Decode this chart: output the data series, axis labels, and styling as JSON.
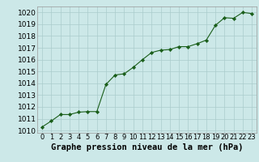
{
  "x": [
    0,
    1,
    2,
    3,
    4,
    5,
    6,
    7,
    8,
    9,
    10,
    11,
    12,
    13,
    14,
    15,
    16,
    17,
    18,
    19,
    20,
    21,
    22,
    23
  ],
  "y": [
    1010.3,
    1010.8,
    1011.35,
    1011.35,
    1011.55,
    1011.6,
    1011.6,
    1013.9,
    1014.7,
    1014.8,
    1015.35,
    1016.0,
    1016.6,
    1016.8,
    1016.85,
    1017.1,
    1017.1,
    1017.35,
    1017.65,
    1018.9,
    1019.55,
    1019.5,
    1020.0,
    1019.9
  ],
  "line_color": "#1a5e1a",
  "marker_color": "#1a5e1a",
  "bg_color": "#cce8e8",
  "grid_color": "#aacccc",
  "xlabel": "Graphe pression niveau de la mer (hPa)",
  "xlabel_fontsize": 7.5,
  "ylabel_fontsize": 6.5,
  "tick_fontsize": 6.0,
  "ylim": [
    1009.8,
    1020.5
  ],
  "xlim": [
    -0.5,
    23.5
  ],
  "yticks": [
    1010,
    1011,
    1012,
    1013,
    1014,
    1015,
    1016,
    1017,
    1018,
    1019,
    1020
  ],
  "xticks": [
    0,
    1,
    2,
    3,
    4,
    5,
    6,
    7,
    8,
    9,
    10,
    11,
    12,
    13,
    14,
    15,
    16,
    17,
    18,
    19,
    20,
    21,
    22,
    23
  ]
}
